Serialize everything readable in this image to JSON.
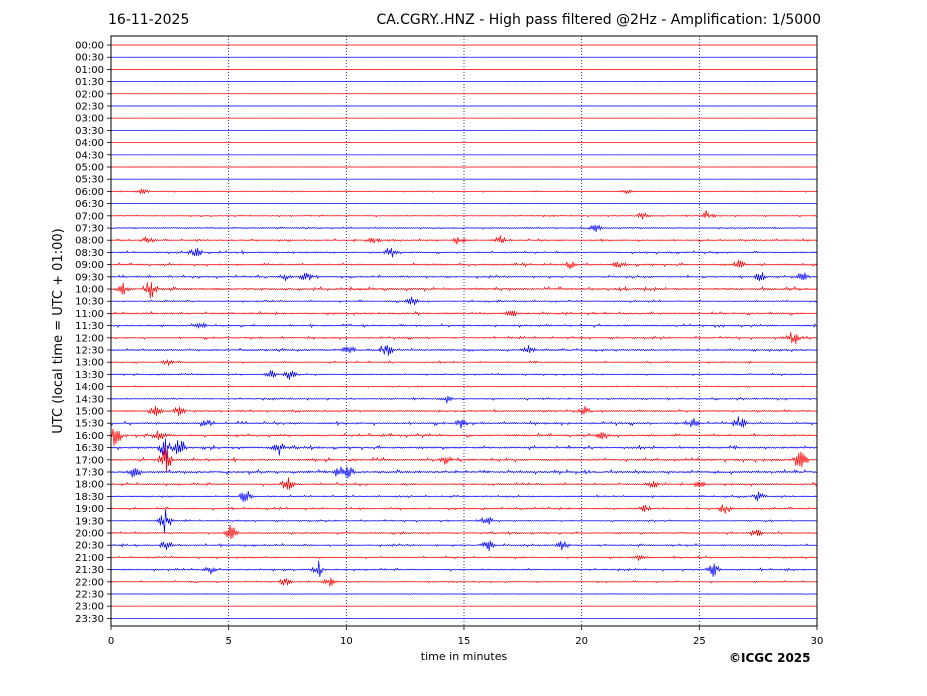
{
  "header": {
    "date": "16-11-2025",
    "title": "CA.CGRY..HNZ - High pass filtered @2Hz - Amplification: 1/5000"
  },
  "copyright": "©ICGC 2025",
  "chart_data": {
    "type": "line",
    "xlabel": "time in minutes",
    "ylabel": "UTC (local time = UTC + 01:00)",
    "xlim": [
      0,
      30
    ],
    "x_ticks": [
      0,
      5,
      10,
      15,
      20,
      25,
      30
    ],
    "vertical_grid_minutes": [
      5,
      10,
      15,
      20,
      25
    ],
    "row_labels": [
      "00:00",
      "00:30",
      "01:00",
      "01:30",
      "02:00",
      "02:30",
      "03:00",
      "03:30",
      "04:00",
      "04:30",
      "05:00",
      "05:30",
      "06:00",
      "06:30",
      "07:00",
      "07:30",
      "08:00",
      "08:30",
      "09:00",
      "09:30",
      "10:00",
      "10:30",
      "11:00",
      "11:30",
      "12:00",
      "12:30",
      "13:00",
      "13:30",
      "14:00",
      "14:30",
      "15:00",
      "15:30",
      "16:00",
      "16:30",
      "17:00",
      "17:30",
      "18:00",
      "18:30",
      "19:00",
      "19:30",
      "20:00",
      "20:30",
      "21:00",
      "21:30",
      "22:00",
      "22:30",
      "23:00",
      "23:30"
    ],
    "colors": {
      "even_rows": "#ff0000",
      "odd_rows": "#0000ff",
      "grid": "#000080"
    },
    "activity_levels": [
      0.0,
      0.05,
      0.0,
      0.0,
      0.0,
      0.0,
      0.0,
      0.0,
      0.0,
      0.0,
      0.0,
      0.0,
      0.3,
      0.1,
      0.35,
      0.4,
      0.6,
      0.6,
      0.75,
      0.7,
      0.9,
      0.5,
      0.75,
      0.7,
      0.65,
      0.75,
      0.5,
      0.45,
      0.3,
      0.55,
      0.6,
      0.85,
      0.9,
      0.9,
      0.95,
      1.0,
      0.7,
      0.55,
      0.6,
      0.45,
      0.55,
      0.65,
      0.55,
      0.6,
      0.45,
      0.15,
      0.0,
      0.0
    ],
    "events": [
      {
        "row": "06:00",
        "minute": 1.3,
        "amp": 0.35
      },
      {
        "row": "06:00",
        "minute": 21.9,
        "amp": 0.25
      },
      {
        "row": "07:00",
        "minute": 22.6,
        "amp": 0.45
      },
      {
        "row": "07:00",
        "minute": 25.4,
        "amp": 0.8
      },
      {
        "row": "07:30",
        "minute": 20.6,
        "amp": 0.45
      },
      {
        "row": "08:00",
        "minute": 1.6,
        "amp": 0.5
      },
      {
        "row": "08:00",
        "minute": 11.2,
        "amp": 0.45
      },
      {
        "row": "08:00",
        "minute": 14.8,
        "amp": 0.6
      },
      {
        "row": "08:00",
        "minute": 16.5,
        "amp": 0.6
      },
      {
        "row": "08:30",
        "minute": 3.6,
        "amp": 0.6
      },
      {
        "row": "08:30",
        "minute": 11.9,
        "amp": 0.8
      },
      {
        "row": "09:00",
        "minute": 19.5,
        "amp": 0.5
      },
      {
        "row": "09:00",
        "minute": 21.6,
        "amp": 0.5
      },
      {
        "row": "09:00",
        "minute": 26.7,
        "amp": 0.6
      },
      {
        "row": "09:30",
        "minute": 7.4,
        "amp": 0.5
      },
      {
        "row": "09:30",
        "minute": 8.3,
        "amp": 0.55
      },
      {
        "row": "09:30",
        "minute": 27.6,
        "amp": 0.6
      },
      {
        "row": "09:30",
        "minute": 29.4,
        "amp": 0.6
      },
      {
        "row": "10:00",
        "minute": 0.5,
        "amp": 0.7
      },
      {
        "row": "10:00",
        "minute": 1.7,
        "amp": 1.3
      },
      {
        "row": "10:30",
        "minute": 12.8,
        "amp": 0.6
      },
      {
        "row": "11:00",
        "minute": 17.0,
        "amp": 0.6
      },
      {
        "row": "11:30",
        "minute": 3.8,
        "amp": 0.4
      },
      {
        "row": "12:00",
        "minute": 29.0,
        "amp": 1.0
      },
      {
        "row": "12:30",
        "minute": 10.1,
        "amp": 0.8
      },
      {
        "row": "12:30",
        "minute": 11.7,
        "amp": 1.0
      },
      {
        "row": "12:30",
        "minute": 17.7,
        "amp": 0.6
      },
      {
        "row": "13:00",
        "minute": 2.4,
        "amp": 0.6
      },
      {
        "row": "13:30",
        "minute": 6.8,
        "amp": 0.6
      },
      {
        "row": "13:30",
        "minute": 7.6,
        "amp": 0.6
      },
      {
        "row": "14:30",
        "minute": 14.3,
        "amp": 0.5
      },
      {
        "row": "15:00",
        "minute": 1.9,
        "amp": 0.7
      },
      {
        "row": "15:00",
        "minute": 2.9,
        "amp": 0.6
      },
      {
        "row": "15:00",
        "minute": 20.1,
        "amp": 0.5
      },
      {
        "row": "15:30",
        "minute": 4.1,
        "amp": 0.6
      },
      {
        "row": "15:30",
        "minute": 14.9,
        "amp": 0.6
      },
      {
        "row": "15:30",
        "minute": 24.7,
        "amp": 0.7
      },
      {
        "row": "15:30",
        "minute": 26.7,
        "amp": 0.9
      },
      {
        "row": "16:00",
        "minute": 0.2,
        "amp": 1.4
      },
      {
        "row": "16:00",
        "minute": 2.1,
        "amp": 0.6
      },
      {
        "row": "16:00",
        "minute": 20.9,
        "amp": 0.6
      },
      {
        "row": "16:30",
        "minute": 2.3,
        "amp": 2.6
      },
      {
        "row": "16:30",
        "minute": 2.9,
        "amp": 1.2
      },
      {
        "row": "16:30",
        "minute": 7.1,
        "amp": 0.9
      },
      {
        "row": "17:00",
        "minute": 2.3,
        "amp": 1.8
      },
      {
        "row": "17:00",
        "minute": 14.2,
        "amp": 0.6
      },
      {
        "row": "17:00",
        "minute": 29.3,
        "amp": 1.1
      },
      {
        "row": "17:30",
        "minute": 1.0,
        "amp": 0.8
      },
      {
        "row": "17:30",
        "minute": 9.7,
        "amp": 0.8
      },
      {
        "row": "17:30",
        "minute": 10.1,
        "amp": 0.8
      },
      {
        "row": "18:00",
        "minute": 7.5,
        "amp": 0.9
      },
      {
        "row": "18:00",
        "minute": 23.0,
        "amp": 0.5
      },
      {
        "row": "18:00",
        "minute": 25.0,
        "amp": 0.5
      },
      {
        "row": "18:30",
        "minute": 5.7,
        "amp": 0.8
      },
      {
        "row": "18:30",
        "minute": 27.5,
        "amp": 0.6
      },
      {
        "row": "19:00",
        "minute": 26.1,
        "amp": 0.8
      },
      {
        "row": "19:00",
        "minute": 22.7,
        "amp": 0.5
      },
      {
        "row": "19:30",
        "minute": 16.0,
        "amp": 0.6
      },
      {
        "row": "19:30",
        "minute": 2.3,
        "amp": 1.5
      },
      {
        "row": "20:00",
        "minute": 5.1,
        "amp": 1.0
      },
      {
        "row": "20:00",
        "minute": 27.4,
        "amp": 0.5
      },
      {
        "row": "20:30",
        "minute": 2.4,
        "amp": 0.7
      },
      {
        "row": "20:30",
        "minute": 16.0,
        "amp": 0.8
      },
      {
        "row": "20:30",
        "minute": 19.2,
        "amp": 0.6
      },
      {
        "row": "21:00",
        "minute": 22.5,
        "amp": 0.5
      },
      {
        "row": "21:30",
        "minute": 8.8,
        "amp": 1.0
      },
      {
        "row": "21:30",
        "minute": 25.6,
        "amp": 0.9
      },
      {
        "row": "21:30",
        "minute": 4.2,
        "amp": 0.5
      },
      {
        "row": "22:00",
        "minute": 7.4,
        "amp": 0.5
      },
      {
        "row": "22:00",
        "minute": 9.3,
        "amp": 0.5
      }
    ]
  }
}
